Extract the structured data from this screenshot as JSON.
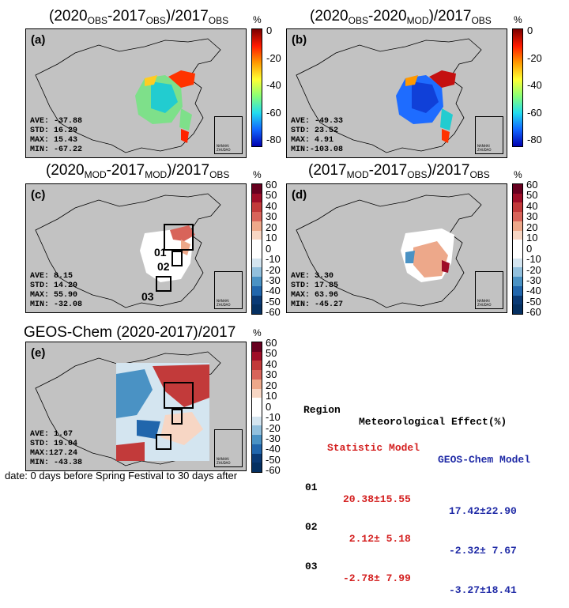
{
  "panels": [
    {
      "id": "a",
      "title_parts": [
        "(2020",
        "OBS",
        "-2017",
        "OBS",
        ")/2017",
        "OBS"
      ],
      "label": "(a)",
      "stats": [
        "AVE: -37.88",
        "STD:  16.29",
        "MAX:  15.43",
        "MIN: -67.22"
      ],
      "colorbar": {
        "unit": "%",
        "ticks": [
          "0",
          "-20",
          "-40",
          "-60",
          "-80"
        ]
      }
    },
    {
      "id": "b",
      "title_parts": [
        "(2020",
        "OBS",
        "-2020",
        "MOD",
        ")/2017",
        "OBS"
      ],
      "label": "(b)",
      "stats": [
        "AVE: -49.33",
        "STD:  23.52",
        "MAX:   4.91",
        "MIN:-103.08"
      ],
      "colorbar": {
        "unit": "%",
        "ticks": [
          "0",
          "-20",
          "-40",
          "-60",
          "-80"
        ]
      }
    },
    {
      "id": "c",
      "title_parts": [
        "(2020",
        "MOD",
        "-2017",
        "MOD",
        ")/2017",
        "OBS"
      ],
      "label": "(c)",
      "stats": [
        "AVE:   8.15",
        "STD:  14.20",
        "MAX:  55.90",
        "MIN: -32.08"
      ],
      "regions": [
        "01",
        "02",
        "03"
      ],
      "colorbar": {
        "unit": "%",
        "ticks": [
          "60",
          "50",
          "40",
          "30",
          "20",
          "10",
          "0",
          "-10",
          "-20",
          "-30",
          "-40",
          "-50",
          "-60"
        ]
      }
    },
    {
      "id": "d",
      "title_parts": [
        "(2017",
        "MOD",
        "-2017",
        "OBS",
        ")/2017",
        "OBS"
      ],
      "label": "(d)",
      "stats": [
        "AVE:   3.30",
        "STD:  17.85",
        "MAX:  63.96",
        "MIN: -45.27"
      ],
      "colorbar": {
        "unit": "%",
        "ticks": [
          "60",
          "50",
          "40",
          "30",
          "20",
          "10",
          "0",
          "-10",
          "-20",
          "-30",
          "-40",
          "-50",
          "-60"
        ]
      }
    },
    {
      "id": "e",
      "title": "GEOS-Chem (2020-2017)/2017",
      "label": "(e)",
      "stats": [
        "AVE:   1.67",
        "STD:  19.04",
        "MAX:127.24",
        "MIN: -43.38"
      ],
      "colorbar": {
        "unit": "%",
        "ticks": [
          "60",
          "50",
          "40",
          "30",
          "20",
          "10",
          "0",
          "-10",
          "-20",
          "-30",
          "-40",
          "-50",
          "-60"
        ]
      }
    }
  ],
  "inset_text": "NANHAI ZHUDAO",
  "table": {
    "col_region": "Region",
    "col_effect": "Meteorological Effect(%)",
    "col_stat": "Statistic Model",
    "col_geos": "GEOS-Chem Model",
    "rows": [
      {
        "region": "01",
        "stat": "20.38±15.55",
        "geos": "17.42±22.90"
      },
      {
        "region": "02",
        "stat": " 2.12± 5.18",
        "geos": "-2.32± 7.67"
      },
      {
        "region": "03",
        "stat": "-2.78± 7.99",
        "geos": "-3.27±18.41"
      }
    ]
  },
  "footer": "date: 0 days before Spring Festival to 30 days after",
  "colors": {
    "map_bg": "#c2c2c2",
    "jet": [
      "#7a0000",
      "#ff1a00",
      "#ff9900",
      "#ffff33",
      "#88ff77",
      "#22ddee",
      "#1166ff",
      "#0000b0"
    ],
    "diverging": [
      "#67001f",
      "#9e0d27",
      "#c23a3a",
      "#d8645a",
      "#eda88a",
      "#f7d6c4",
      "#ffffff",
      "#ffffff",
      "#d4e5f0",
      "#92c0dd",
      "#4a92c4",
      "#2166ac",
      "#0a3a75",
      "#053061"
    ]
  }
}
